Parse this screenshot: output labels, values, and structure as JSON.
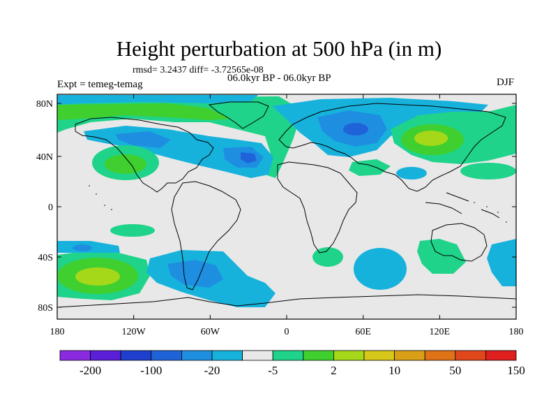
{
  "title": "Height perturbation at 500 hPa (in m)",
  "stats": "rmsd= 3.2437 diff= -3.72565e-08",
  "subtitle": "06.0kyr BP - 06.0kyr BP",
  "experiment": "Expt = temeg-temag",
  "season": "DJF",
  "lon_ticks": [
    "180",
    "120W",
    "60W",
    "0",
    "60E",
    "120E",
    "180"
  ],
  "lat_ticks": [
    "80N",
    "40N",
    "0",
    "40S",
    "80S"
  ],
  "colorbar": {
    "colors": [
      "#8a2be2",
      "#5a1fd6",
      "#1f3fcf",
      "#1f63d9",
      "#1e8fe0",
      "#17b2dc",
      "#e8e8e8",
      "#1fd38a",
      "#3fcf2f",
      "#a6d81a",
      "#d6c71a",
      "#d9a017",
      "#e07217",
      "#e0471a",
      "#e01f1f"
    ],
    "labels": [
      "-200",
      "-100",
      "-20",
      "-5",
      "2",
      "10",
      "50",
      "150"
    ]
  },
  "palette": {
    "neutral": "#e8e8e8",
    "neg1": "#17b2dc",
    "neg2": "#1e8fe0",
    "neg3": "#1f63d9",
    "pos1": "#1fd38a",
    "pos2": "#3fcf2f",
    "pos3": "#a6d81a"
  }
}
